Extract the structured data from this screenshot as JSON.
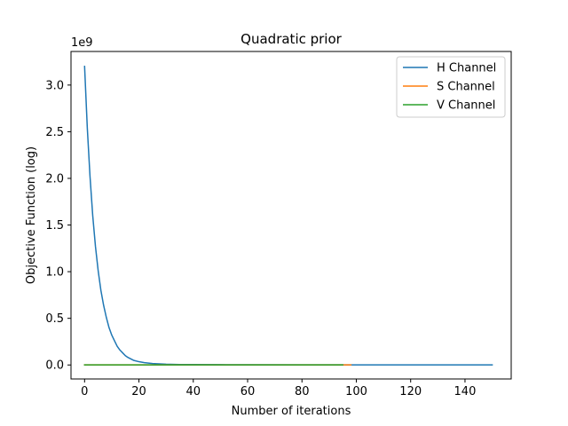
{
  "chart_data": {
    "type": "line",
    "title": "Quadratic prior",
    "xlabel": "Number of iterations",
    "ylabel": "Objective Function (log)",
    "y_offset_label": "1e9",
    "xlim": [
      -5,
      157
    ],
    "ylim": [
      -0.15,
      3.36
    ],
    "x_ticks": [
      0,
      20,
      40,
      60,
      80,
      100,
      120,
      140
    ],
    "x_tick_labels": [
      "0",
      "20",
      "40",
      "60",
      "80",
      "100",
      "120",
      "140"
    ],
    "y_ticks": [
      0.0,
      0.5,
      1.0,
      1.5,
      2.0,
      2.5,
      3.0
    ],
    "y_tick_labels": [
      "0.0",
      "0.5",
      "1.0",
      "1.5",
      "2.0",
      "2.5",
      "3.0"
    ],
    "grid": false,
    "legend_position": "top-right",
    "series": [
      {
        "name": "H Channel",
        "color": "#1f77b4",
        "x": [
          0,
          1,
          2,
          3,
          4,
          5,
          6,
          7,
          8,
          9,
          10,
          11,
          12,
          13,
          14,
          15,
          16,
          18,
          20,
          22,
          25,
          30,
          35,
          40,
          50,
          60,
          80,
          100,
          120,
          150
        ],
        "y": [
          3.2,
          2.54,
          2.02,
          1.6,
          1.27,
          1.01,
          0.8,
          0.64,
          0.51,
          0.4,
          0.32,
          0.26,
          0.2,
          0.16,
          0.13,
          0.1,
          0.08,
          0.05,
          0.035,
          0.025,
          0.015,
          0.008,
          0.005,
          0.004,
          0.003,
          0.002,
          0.0015,
          0.001,
          0.001,
          0.001
        ]
      },
      {
        "name": "S Channel",
        "color": "#ff7f0e",
        "x": [
          0,
          20,
          40,
          60,
          80,
          98
        ],
        "y": [
          0.001,
          0.001,
          0.001,
          0.001,
          0.001,
          0.001
        ]
      },
      {
        "name": "V Channel",
        "color": "#2ca02c",
        "x": [
          0,
          20,
          40,
          60,
          80,
          95
        ],
        "y": [
          0.001,
          0.001,
          0.001,
          0.001,
          0.001,
          0.001
        ]
      }
    ]
  }
}
